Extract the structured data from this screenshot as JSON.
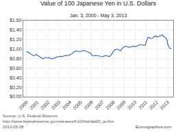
{
  "chart_data": {
    "type": "line",
    "title": "Value of 100 Japanese Yen in U.S. Dollars",
    "subtitle": "Jan. 3, 2000 - May 3, 2013",
    "annotations": [
      "Source: U.S. Federal Reserve\nhttp://www.federalreserve.gov/releases/h10/hist/dat00_ja.htm\n2013-05-08",
      "Econographics.com"
    ],
    "color": "#3a6bbf",
    "grid": true,
    "xlim": [
      1999.7,
      2013.5
    ],
    "xticks": [
      2000,
      2001,
      2002,
      2003,
      2004,
      2005,
      2006,
      2007,
      2008,
      2009,
      2010,
      2011,
      2012,
      2013
    ],
    "ylim": [
      0.0,
      1.6
    ],
    "yticks": [
      {
        "value": 0.0,
        "label": "$0.00"
      },
      {
        "value": 0.2,
        "label": "$0.20"
      },
      {
        "value": 0.4,
        "label": "$0.40"
      },
      {
        "value": 0.6,
        "label": "$0.60"
      },
      {
        "value": 0.8,
        "label": "$0.80"
      },
      {
        "value": 1.0,
        "label": "$1.00"
      },
      {
        "value": 1.2,
        "label": "$1.20"
      },
      {
        "value": 1.4,
        "label": "$1.40"
      },
      {
        "value": 1.6,
        "label": "$1.60"
      }
    ],
    "x": [
      2000.0,
      2000.08,
      2000.17,
      2000.25,
      2000.33,
      2000.42,
      2000.5,
      2000.58,
      2000.67,
      2000.75,
      2000.83,
      2000.92,
      2001.0,
      2001.08,
      2001.17,
      2001.25,
      2001.33,
      2001.42,
      2001.5,
      2001.58,
      2001.67,
      2001.75,
      2001.83,
      2001.92,
      2002.0,
      2002.08,
      2002.17,
      2002.25,
      2002.33,
      2002.42,
      2002.5,
      2002.58,
      2002.67,
      2002.75,
      2002.83,
      2002.92,
      2003.0,
      2003.08,
      2003.17,
      2003.25,
      2003.33,
      2003.42,
      2003.5,
      2003.58,
      2003.67,
      2003.75,
      2003.83,
      2003.92,
      2004.0,
      2004.08,
      2004.17,
      2004.25,
      2004.33,
      2004.42,
      2004.5,
      2004.58,
      2004.67,
      2004.75,
      2004.83,
      2004.92,
      2005.0,
      2005.08,
      2005.17,
      2005.25,
      2005.33,
      2005.42,
      2005.5,
      2005.58,
      2005.67,
      2005.75,
      2005.83,
      2005.92,
      2006.0,
      2006.08,
      2006.17,
      2006.25,
      2006.33,
      2006.42,
      2006.5,
      2006.58,
      2006.67,
      2006.75,
      2006.83,
      2006.92,
      2007.0,
      2007.08,
      2007.17,
      2007.25,
      2007.33,
      2007.42,
      2007.5,
      2007.58,
      2007.67,
      2007.75,
      2007.83,
      2007.92,
      2008.0,
      2008.08,
      2008.17,
      2008.25,
      2008.33,
      2008.42,
      2008.5,
      2008.58,
      2008.67,
      2008.75,
      2008.83,
      2008.92,
      2009.0,
      2009.08,
      2009.17,
      2009.25,
      2009.33,
      2009.42,
      2009.5,
      2009.58,
      2009.67,
      2009.75,
      2009.83,
      2009.92,
      2010.0,
      2010.08,
      2010.17,
      2010.25,
      2010.33,
      2010.42,
      2010.5,
      2010.58,
      2010.67,
      2010.75,
      2010.83,
      2010.92,
      2011.0,
      2011.08,
      2011.17,
      2011.25,
      2011.33,
      2011.42,
      2011.5,
      2011.58,
      2011.67,
      2011.75,
      2011.83,
      2011.92,
      2012.0,
      2012.08,
      2012.17,
      2012.25,
      2012.33,
      2012.42,
      2012.5,
      2012.58,
      2012.67,
      2012.75,
      2012.83,
      2012.92,
      2013.0,
      2013.08,
      2013.17,
      2013.33
    ],
    "values": [
      0.935,
      0.945,
      0.938,
      0.922,
      0.905,
      0.895,
      0.882,
      0.868,
      0.862,
      0.87,
      0.882,
      0.888,
      0.872,
      0.86,
      0.845,
      0.828,
      0.815,
      0.802,
      0.797,
      0.808,
      0.818,
      0.825,
      0.82,
      0.815,
      0.818,
      0.822,
      0.812,
      0.802,
      0.793,
      0.8,
      0.808,
      0.818,
      0.832,
      0.84,
      0.838,
      0.84,
      0.842,
      0.85,
      0.848,
      0.842,
      0.852,
      0.858,
      0.862,
      0.87,
      0.865,
      0.862,
      0.868,
      0.872,
      0.878,
      0.888,
      0.902,
      0.922,
      0.94,
      0.952,
      0.96,
      0.958,
      0.952,
      0.948,
      0.942,
      0.94,
      0.948,
      0.958,
      0.968,
      0.975,
      0.972,
      0.962,
      0.952,
      0.942,
      0.932,
      0.922,
      0.915,
      0.908,
      0.872,
      0.862,
      0.858,
      0.862,
      0.87,
      0.87,
      0.865,
      0.862,
      0.858,
      0.85,
      0.845,
      0.842,
      0.84,
      0.848,
      0.855,
      0.862,
      0.868,
      0.862,
      0.852,
      0.842,
      0.852,
      0.87,
      0.89,
      0.915,
      0.955,
      0.975,
      0.988,
      0.998,
      1.0,
      0.995,
      0.985,
      0.975,
      0.962,
      1.002,
      1.03,
      1.042,
      1.048,
      1.055,
      1.062,
      1.052,
      1.042,
      1.04,
      1.042,
      1.048,
      1.055,
      1.058,
      1.06,
      1.058,
      1.052,
      1.055,
      1.062,
      1.068,
      1.082,
      1.092,
      1.098,
      1.092,
      1.088,
      1.085,
      1.082,
      1.08,
      1.135,
      1.195,
      1.242,
      1.248,
      1.235,
      1.228,
      1.222,
      1.228,
      1.238,
      1.272,
      1.268,
      1.278,
      1.25,
      1.258,
      1.268,
      1.278,
      1.288,
      1.295,
      1.298,
      1.282,
      1.262,
      1.242,
      1.225,
      1.21,
      1.102,
      1.052,
      1.022,
      1.01
    ]
  }
}
